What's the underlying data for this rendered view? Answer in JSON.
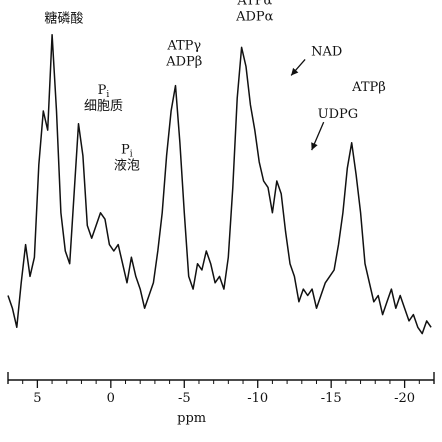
{
  "chart_data": {
    "type": "line",
    "xlabel": "ppm",
    "ylabel": "",
    "xlim": [
      7,
      -22
    ],
    "x_ticks": [
      {
        "value": 5,
        "label": "5"
      },
      {
        "value": 0,
        "label": "0"
      },
      {
        "value": -5,
        "label": "-5"
      },
      {
        "value": -10,
        "label": "-10"
      },
      {
        "value": -15,
        "label": "-15"
      },
      {
        "value": -20,
        "label": "-20"
      }
    ],
    "minor_ticks": [
      6,
      4,
      3,
      2,
      1,
      -1,
      -2,
      -3,
      -4,
      -6,
      -7,
      -8,
      -9,
      -11,
      -12,
      -13,
      -14,
      -16,
      -17,
      -18,
      -19,
      -21
    ],
    "grid": false,
    "series": [
      {
        "color": "#111111",
        "x": [
          7.0,
          6.7,
          6.4,
          6.1,
          5.8,
          5.5,
          5.2,
          4.9,
          4.6,
          4.3,
          4.0,
          3.7,
          3.4,
          3.1,
          2.8,
          2.5,
          2.2,
          1.9,
          1.6,
          1.3,
          1.0,
          0.7,
          0.4,
          0.1,
          -0.2,
          -0.5,
          -0.8,
          -1.1,
          -1.4,
          -1.7,
          -2.0,
          -2.3,
          -2.6,
          -2.9,
          -3.2,
          -3.5,
          -3.8,
          -4.1,
          -4.4,
          -4.7,
          -5.0,
          -5.3,
          -5.6,
          -5.9,
          -6.2,
          -6.5,
          -6.8,
          -7.1,
          -7.4,
          -7.7,
          -8.0,
          -8.3,
          -8.6,
          -8.9,
          -9.2,
          -9.5,
          -9.8,
          -10.1,
          -10.4,
          -10.7,
          -11.0,
          -11.3,
          -11.6,
          -11.9,
          -12.2,
          -12.5,
          -12.8,
          -13.1,
          -13.4,
          -13.7,
          -14.0,
          -14.3,
          -14.6,
          -14.9,
          -15.2,
          -15.5,
          -15.8,
          -16.1,
          -16.4,
          -16.7,
          -17.0,
          -17.3,
          -17.6,
          -17.9,
          -18.2,
          -18.5,
          -18.8,
          -19.1,
          -19.4,
          -19.7,
          -20.0,
          -20.3,
          -20.6,
          -20.9,
          -21.2,
          -21.5,
          -21.8
        ],
        "y": [
          14,
          10,
          4,
          18,
          30,
          20,
          26,
          55,
          72,
          66,
          96,
          72,
          40,
          28,
          24,
          46,
          68,
          58,
          36,
          32,
          36,
          40,
          38,
          30,
          28,
          30,
          24,
          18,
          26,
          20,
          16,
          10,
          14,
          18,
          28,
          40,
          58,
          72,
          80,
          62,
          40,
          20,
          16,
          24,
          22,
          28,
          24,
          18,
          20,
          16,
          26,
          48,
          76,
          92,
          86,
          74,
          66,
          56,
          50,
          48,
          40,
          50,
          46,
          34,
          24,
          20,
          12,
          16,
          14,
          16,
          10,
          14,
          18,
          20,
          22,
          30,
          40,
          54,
          62,
          52,
          40,
          24,
          18,
          12,
          14,
          8,
          12,
          16,
          10,
          14,
          10,
          6,
          8,
          4,
          2,
          6,
          4
        ]
      }
    ],
    "annotations": [
      {
        "text": "糖磷酸",
        "x": 3.2,
        "y": 96
      },
      {
        "text": "P",
        "sub": "i",
        "text2": "细胞质",
        "x": 2.0,
        "y": 68
      },
      {
        "text": "P",
        "sub": "i",
        "text2": "液泡",
        "x": 0.0,
        "y": 48
      },
      {
        "text": "ATPγ",
        "text2": "ADPβ",
        "x": -5.0,
        "y": 80
      },
      {
        "text": "ATPα",
        "text2": "ADPα",
        "x": -9.8,
        "y": 98
      },
      {
        "text": "NAD",
        "x": -12.0,
        "y": 92
      },
      {
        "text": "UDPG",
        "x": -13.4,
        "y": 66
      },
      {
        "text": "ATPβ",
        "x": -17.3,
        "y": 62
      }
    ]
  }
}
